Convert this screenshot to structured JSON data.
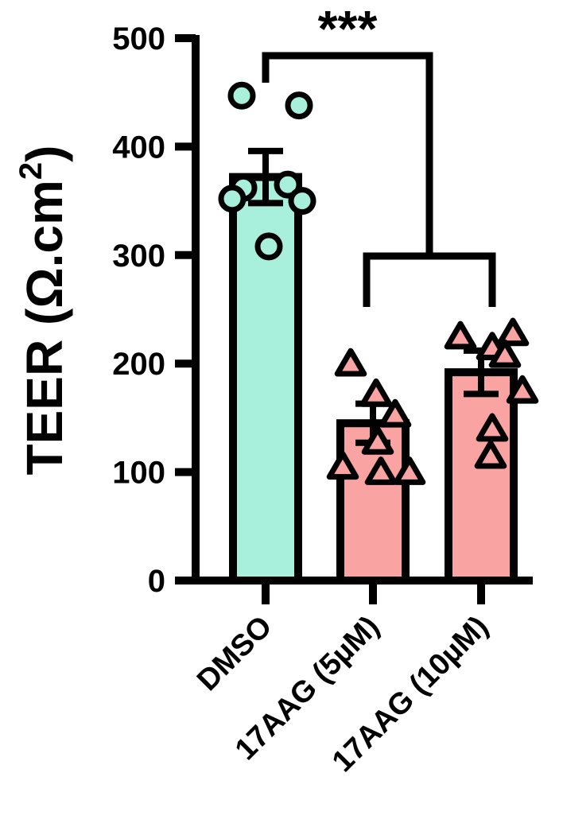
{
  "chart_data": {
    "type": "bar",
    "title": "",
    "xlabel": "",
    "ylabel": "TEER (Ω.cm²)",
    "ylabel_parts": {
      "main": "TEER (Ω.cm",
      "sup": "2",
      "close": ")"
    },
    "ylim": [
      0,
      500
    ],
    "yticks": [
      0,
      100,
      200,
      300,
      400,
      500
    ],
    "categories": [
      "DMSO",
      "17AAG (5µM)",
      "17AAG (10µM)"
    ],
    "values": [
      372,
      145,
      192
    ],
    "errors": [
      24,
      18,
      20
    ],
    "colors": [
      "#a8f0dc",
      "#f9a3a3",
      "#f9a3a3"
    ],
    "points": [
      {
        "marker": "circle",
        "values": [
          447,
          438,
          365,
          362,
          352,
          350,
          308
        ]
      },
      {
        "marker": "triangle",
        "values": [
          200,
          172,
          153,
          128,
          105,
          100,
          100
        ]
      },
      {
        "marker": "triangle",
        "values": [
          228,
          225,
          215,
          208,
          175,
          140,
          115
        ]
      }
    ],
    "significance": {
      "label": "***",
      "compare": "DMSO vs 17AAG groups"
    },
    "grid": false,
    "legend": "none"
  }
}
